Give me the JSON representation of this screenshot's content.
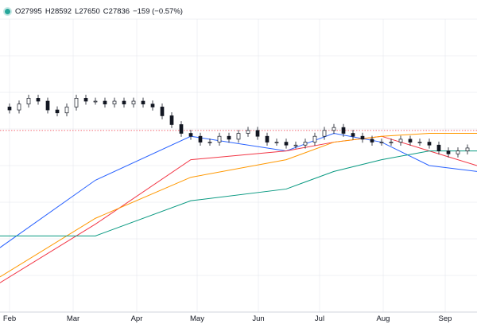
{
  "legend": {
    "open": "O27995",
    "high": "H28592",
    "low": "L27650",
    "close": "C27836",
    "change": "−159 (−0.57%)",
    "dot_color": "#26a69a"
  },
  "colors": {
    "candle_up": "#131722",
    "candle_down": "#131722",
    "ma20": "#2962ff",
    "ma50": "#f23645",
    "ma100": "#ff9800",
    "ma200": "#089981",
    "price_line": "#f23645",
    "grid": "#e0e3eb",
    "axis": "#d1d4dc"
  },
  "chart_data": {
    "type": "line",
    "title": "",
    "x_axis_labels": [
      "Feb",
      "Mar",
      "Apr",
      "May",
      "Jun",
      "Jul",
      "Aug",
      "Sep"
    ],
    "ylim": [
      0,
      100
    ],
    "grid": true,
    "legend_placement": "top-left",
    "series": [
      {
        "key": "close",
        "points": [
          [
            0,
            70
          ],
          [
            2,
            69
          ],
          [
            4,
            71
          ],
          [
            6,
            73
          ],
          [
            8,
            72
          ],
          [
            10,
            69
          ],
          [
            12,
            68
          ],
          [
            14,
            70
          ],
          [
            16,
            73
          ],
          [
            18,
            72
          ],
          [
            20,
            72
          ],
          [
            22,
            71
          ],
          [
            24,
            72
          ],
          [
            26,
            71
          ],
          [
            28,
            72
          ],
          [
            30,
            71
          ],
          [
            32,
            70
          ],
          [
            34,
            67
          ],
          [
            36,
            64
          ],
          [
            38,
            61
          ],
          [
            40,
            60
          ],
          [
            42,
            58
          ],
          [
            44,
            58
          ],
          [
            46,
            60
          ],
          [
            48,
            59
          ],
          [
            50,
            61
          ],
          [
            52,
            62
          ],
          [
            54,
            60
          ],
          [
            56,
            58
          ],
          [
            58,
            58
          ],
          [
            60,
            57
          ],
          [
            62,
            57
          ],
          [
            64,
            58
          ],
          [
            66,
            60
          ],
          [
            68,
            62
          ],
          [
            70,
            63
          ],
          [
            72,
            61
          ],
          [
            74,
            60
          ],
          [
            76,
            59
          ],
          [
            78,
            58
          ],
          [
            80,
            58
          ],
          [
            82,
            58
          ],
          [
            84,
            59
          ],
          [
            86,
            58
          ],
          [
            88,
            58
          ],
          [
            90,
            57
          ],
          [
            92,
            55
          ],
          [
            94,
            54
          ],
          [
            96,
            55
          ],
          [
            98,
            56
          ]
        ]
      }
    ],
    "moving_averages": [
      {
        "key": "ma20",
        "points": [
          [
            0,
            22
          ],
          [
            20,
            45
          ],
          [
            40,
            60
          ],
          [
            60,
            55
          ],
          [
            70,
            61
          ],
          [
            80,
            58
          ],
          [
            90,
            50
          ],
          [
            100,
            48
          ]
        ]
      },
      {
        "key": "ma50",
        "points": [
          [
            0,
            10
          ],
          [
            20,
            30
          ],
          [
            40,
            52
          ],
          [
            60,
            55
          ],
          [
            70,
            58
          ],
          [
            80,
            60
          ],
          [
            90,
            55
          ],
          [
            100,
            50
          ]
        ]
      },
      {
        "key": "ma100",
        "points": [
          [
            0,
            12
          ],
          [
            20,
            32
          ],
          [
            40,
            46
          ],
          [
            60,
            52
          ],
          [
            70,
            58
          ],
          [
            80,
            60
          ],
          [
            90,
            61
          ],
          [
            100,
            61
          ]
        ]
      },
      {
        "key": "ma200",
        "points": [
          [
            0,
            26
          ],
          [
            20,
            26
          ],
          [
            40,
            38
          ],
          [
            60,
            42
          ],
          [
            70,
            48
          ],
          [
            80,
            52
          ],
          [
            90,
            55
          ],
          [
            100,
            55
          ]
        ]
      }
    ],
    "reference_price_level": 62
  }
}
